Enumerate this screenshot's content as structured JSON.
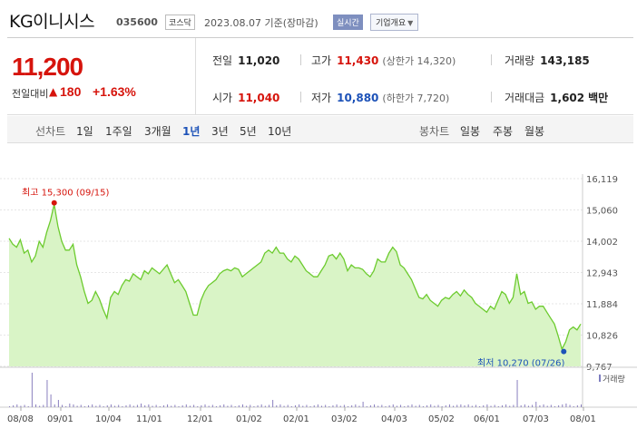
{
  "header": {
    "title": "KG이니시스",
    "code": "035600",
    "market": "코스닥",
    "date": "2023.08.07 기준(장마감)",
    "realtime_badge": "실시간",
    "company_info_button": "기업개요"
  },
  "quote": {
    "price": "11,200",
    "change_label": "전일대비",
    "change_arrow": "▲",
    "change_value": "180",
    "change_pct": "+1.63%",
    "prev_close_label": "전일",
    "prev_close": "11,020",
    "open_label": "시가",
    "open": "11,040",
    "high_label": "고가",
    "high": "11,430",
    "upper_limit": "(상한가 14,320)",
    "low_label": "저가",
    "low": "10,880",
    "lower_limit": "(하한가 7,720)",
    "volume_label": "거래량",
    "volume": "143,185",
    "amount_label": "거래대금",
    "amount": "1,602",
    "amount_unit": "백만"
  },
  "toolbar": {
    "line_label": "선차트",
    "periods": [
      "1일",
      "1주일",
      "3개월",
      "1년",
      "3년",
      "5년",
      "10년"
    ],
    "active_period": "1년",
    "candle_label": "봉차트",
    "candles": [
      "일봉",
      "주봉",
      "월봉"
    ]
  },
  "chart_data": {
    "type": "area",
    "y_ticks": [
      "16,119",
      "15,060",
      "14,002",
      "12,943",
      "11,884",
      "10,826",
      "9,767"
    ],
    "ylim": [
      9767,
      16119
    ],
    "x_ticks": [
      "08/08",
      "09/01",
      "10/04",
      "11/01",
      "12/01",
      "01/02",
      "02/01",
      "03/02",
      "04/03",
      "05/02",
      "06/01",
      "07/03",
      "08/01"
    ],
    "max_label": "최고 15,300 (09/15)",
    "min_label": "최저 10,270 (07/26)",
    "volume_legend": "거래량",
    "line_color": "#6ccb2e",
    "fill_color": "#d9f4c6",
    "values": [
      14100,
      13900,
      13800,
      14050,
      13600,
      13700,
      13300,
      13500,
      14000,
      13800,
      14300,
      14700,
      15250,
      14500,
      14000,
      13700,
      13700,
      13900,
      13200,
      12800,
      12300,
      11900,
      12000,
      12300,
      12050,
      11700,
      11400,
      12100,
      12300,
      12200,
      12500,
      12700,
      12650,
      12900,
      12800,
      12700,
      13000,
      12900,
      13100,
      13000,
      12900,
      13050,
      13200,
      12900,
      12600,
      12700,
      12500,
      12300,
      11900,
      11500,
      11500,
      12000,
      12300,
      12500,
      12600,
      12700,
      12900,
      13000,
      13050,
      13000,
      13100,
      13050,
      12800,
      12900,
      13000,
      13100,
      13200,
      13300,
      13600,
      13700,
      13600,
      13800,
      13600,
      13600,
      13400,
      13300,
      13500,
      13400,
      13200,
      13000,
      12900,
      12800,
      12800,
      13000,
      13200,
      13500,
      13550,
      13400,
      13600,
      13400,
      13000,
      13200,
      13100,
      13100,
      13050,
      12900,
      12800,
      13000,
      13400,
      13300,
      13300,
      13600,
      13800,
      13650,
      13200,
      13100,
      12900,
      12700,
      12400,
      12100,
      12050,
      12200,
      12000,
      11900,
      11800,
      12000,
      12100,
      12050,
      12200,
      12300,
      12150,
      12350,
      12200,
      12100,
      11900,
      11800,
      11700,
      11600,
      11800,
      11700,
      12000,
      12300,
      12200,
      11900,
      12100,
      12900,
      12200,
      12300,
      11900,
      11950,
      11700,
      11800,
      11800,
      11600,
      11400,
      11200,
      10800,
      10350,
      10600,
      11000,
      11100,
      11000,
      11200
    ]
  }
}
